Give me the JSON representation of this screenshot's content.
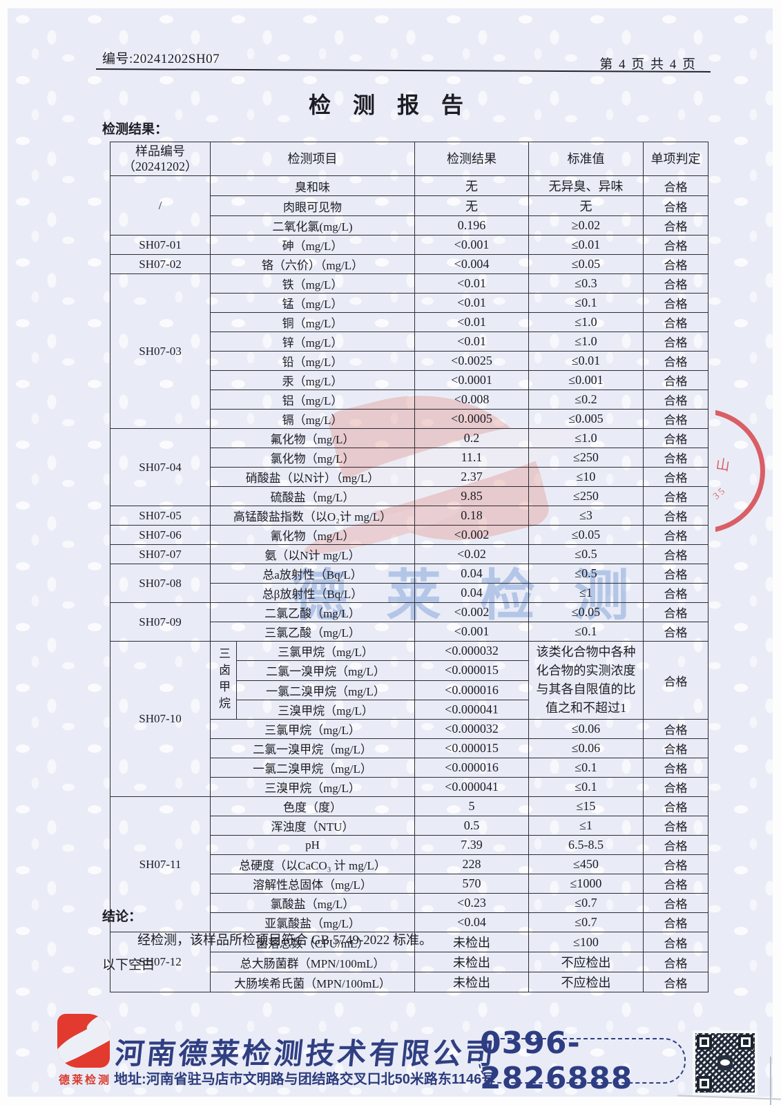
{
  "header": {
    "doc_number": "编号:20241202SH07",
    "page_indicator": "第 4 页 共 4 页",
    "title": "检 测 报 告",
    "results_label": "检测结果："
  },
  "table": {
    "headers": [
      {
        "lines": [
          "样品编号",
          "（20241202）"
        ],
        "span": 1
      },
      {
        "lines": [
          "检测项目"
        ],
        "span": 2
      },
      {
        "lines": [
          "检测结果"
        ],
        "span": 1
      },
      {
        "lines": [
          "标准值"
        ],
        "span": 1
      },
      {
        "lines": [
          "单项判定"
        ],
        "span": 1
      }
    ],
    "groups": [
      {
        "sample": "/",
        "rows": [
          {
            "item": "臭和味",
            "result": "无",
            "standard": "无异臭、异味",
            "verdict": "合格"
          },
          {
            "item": "肉眼可见物",
            "result": "无",
            "standard": "无",
            "verdict": "合格"
          },
          {
            "item": "二氧化氯(mg/L)",
            "result": "0.196",
            "standard": "≥0.02",
            "verdict": "合格"
          }
        ]
      },
      {
        "sample": "SH07-01",
        "rows": [
          {
            "item": "砷（mg/L）",
            "result": "<0.001",
            "standard": "≤0.01",
            "verdict": "合格"
          }
        ]
      },
      {
        "sample": "SH07-02",
        "rows": [
          {
            "item": "铬（六价）（mg/L）",
            "result": "<0.004",
            "standard": "≤0.05",
            "verdict": "合格"
          }
        ]
      },
      {
        "sample": "SH07-03",
        "rows": [
          {
            "item": "铁（mg/L）",
            "result": "<0.01",
            "standard": "≤0.3",
            "verdict": "合格"
          },
          {
            "item": "锰（mg/L）",
            "result": "<0.01",
            "standard": "≤0.1",
            "verdict": "合格"
          },
          {
            "item": "铜（mg/L）",
            "result": "<0.01",
            "standard": "≤1.0",
            "verdict": "合格"
          },
          {
            "item": "锌（mg/L）",
            "result": "<0.01",
            "standard": "≤1.0",
            "verdict": "合格"
          },
          {
            "item": "铅（mg/L）",
            "result": "<0.0025",
            "standard": "≤0.01",
            "verdict": "合格"
          },
          {
            "item": "汞（mg/L）",
            "result": "<0.0001",
            "standard": "≤0.001",
            "verdict": "合格"
          },
          {
            "item": "铝（mg/L）",
            "result": "<0.008",
            "standard": "≤0.2",
            "verdict": "合格"
          },
          {
            "item": "镉（mg/L）",
            "result": "<0.0005",
            "standard": "≤0.005",
            "verdict": "合格"
          }
        ]
      },
      {
        "sample": "SH07-04",
        "rows": [
          {
            "item": "氟化物（mg/L）",
            "result": "0.2",
            "standard": "≤1.0",
            "verdict": "合格"
          },
          {
            "item": "氯化物（mg/L）",
            "result": "11.1",
            "standard": "≤250",
            "verdict": "合格"
          },
          {
            "item": "硝酸盐（以N计）（mg/L）",
            "result": "2.37",
            "standard": "≤10",
            "verdict": "合格"
          },
          {
            "item": "硫酸盐（mg/L）",
            "result": "9.85",
            "standard": "≤250",
            "verdict": "合格"
          }
        ]
      },
      {
        "sample": "SH07-05",
        "rows": [
          {
            "item": "高锰酸盐指数（以O₂计 mg/L）",
            "result": "0.18",
            "standard": "≤3",
            "verdict": "合格"
          }
        ]
      },
      {
        "sample": "SH07-06",
        "rows": [
          {
            "item": "氰化物（mg/L）",
            "result": "<0.002",
            "standard": "≤0.05",
            "verdict": "合格"
          }
        ]
      },
      {
        "sample": "SH07-07",
        "rows": [
          {
            "item": "氨（以N计 mg/L）",
            "result": "<0.02",
            "standard": "≤0.5",
            "verdict": "合格"
          }
        ]
      },
      {
        "sample": "SH07-08",
        "rows": [
          {
            "item": "总a放射性（Bq/L）",
            "result": "0.04",
            "standard": "≤0.5",
            "verdict": "合格"
          },
          {
            "item": "总β放射性（Bq/L）",
            "result": "0.04",
            "standard": "≤1",
            "verdict": "合格"
          }
        ]
      },
      {
        "sample": "SH07-09",
        "rows": [
          {
            "item": "二氯乙酸（mg/L）",
            "result": "<0.002",
            "standard": "≤0.05",
            "verdict": "合格"
          },
          {
            "item": "三氯乙酸（mg/L）",
            "result": "<0.001",
            "standard": "≤0.1",
            "verdict": "合格"
          }
        ]
      },
      {
        "sample": "SH07-10",
        "rows": [
          {
            "vlabel": {
              "text": "三卤甲烷",
              "span": 4
            },
            "item": "三氯甲烷（mg/L）",
            "result": "<0.000032",
            "standard": {
              "text": "该类化合物中各种化合物的实测浓度与其各自限值的比值之和不超过1",
              "span": 4
            },
            "verdict": {
              "text": "合格",
              "span": 4
            }
          },
          {
            "sub": true,
            "item": "二氯一溴甲烷（mg/L）",
            "result": "<0.000015"
          },
          {
            "sub": true,
            "item": "一氯二溴甲烷（mg/L）",
            "result": "<0.000016"
          },
          {
            "sub": true,
            "item": "三溴甲烷（mg/L）",
            "result": "<0.000041"
          },
          {
            "item": "三氯甲烷（mg/L）",
            "result": "<0.000032",
            "standard": "≤0.06",
            "verdict": "合格"
          },
          {
            "item": "二氯一溴甲烷（mg/L）",
            "result": "<0.000015",
            "standard": "≤0.06",
            "verdict": "合格"
          },
          {
            "item": "一氯二溴甲烷（mg/L）",
            "result": "<0.000016",
            "standard": "≤0.1",
            "verdict": "合格"
          },
          {
            "item": "三溴甲烷（mg/L）",
            "result": "<0.000041",
            "standard": "≤0.1",
            "verdict": "合格"
          }
        ]
      },
      {
        "sample": "SH07-11",
        "rows": [
          {
            "item": "色度（度）",
            "result": "5",
            "standard": "≤15",
            "verdict": "合格"
          },
          {
            "item": "浑浊度（NTU）",
            "result": "0.5",
            "standard": "≤1",
            "verdict": "合格"
          },
          {
            "item": "pH",
            "result": "7.39",
            "standard": "6.5-8.5",
            "verdict": "合格"
          },
          {
            "item": "总硬度（以CaCO₃ 计 mg/L）",
            "result": "228",
            "standard": "≤450",
            "verdict": "合格"
          },
          {
            "item": "溶解性总固体（mg/L）",
            "result": "570",
            "standard": "≤1000",
            "verdict": "合格"
          },
          {
            "item": "氯酸盐（mg/L）",
            "result": "<0.23",
            "standard": "≤0.7",
            "verdict": "合格"
          },
          {
            "item": "亚氯酸盐（mg/L）",
            "result": "<0.04",
            "standard": "≤0.7",
            "verdict": "合格"
          }
        ]
      },
      {
        "sample": "SH07-12",
        "rows": [
          {
            "item": "菌落总数（CFU/mL）",
            "result": "未检出",
            "standard": "≤100",
            "verdict": "合格"
          },
          {
            "item": "总大肠菌群（MPN/100mL）",
            "result": "未检出",
            "standard": "不应检出",
            "verdict": "合格"
          },
          {
            "item": "大肠埃希氏菌（MPN/100mL）",
            "result": "未检出",
            "standard": "不应检出",
            "verdict": "合格"
          }
        ]
      }
    ]
  },
  "watermark": {
    "company_text": "德莱检测"
  },
  "stamp": {
    "glyph1": "山",
    "glyph2": "35"
  },
  "conclusion": {
    "label": "结论：",
    "text": "经检测，该样品所检项目符合 GB 5749-2022 标准。",
    "blank_note": "以下空白"
  },
  "footer": {
    "company_name": "河南德莱检测技术有限公司",
    "address": "地址:河南省驻马店市文明路与团结路交叉口北50米路东1146号",
    "phone": "0396-2826888",
    "logo_text": "德莱检测"
  }
}
